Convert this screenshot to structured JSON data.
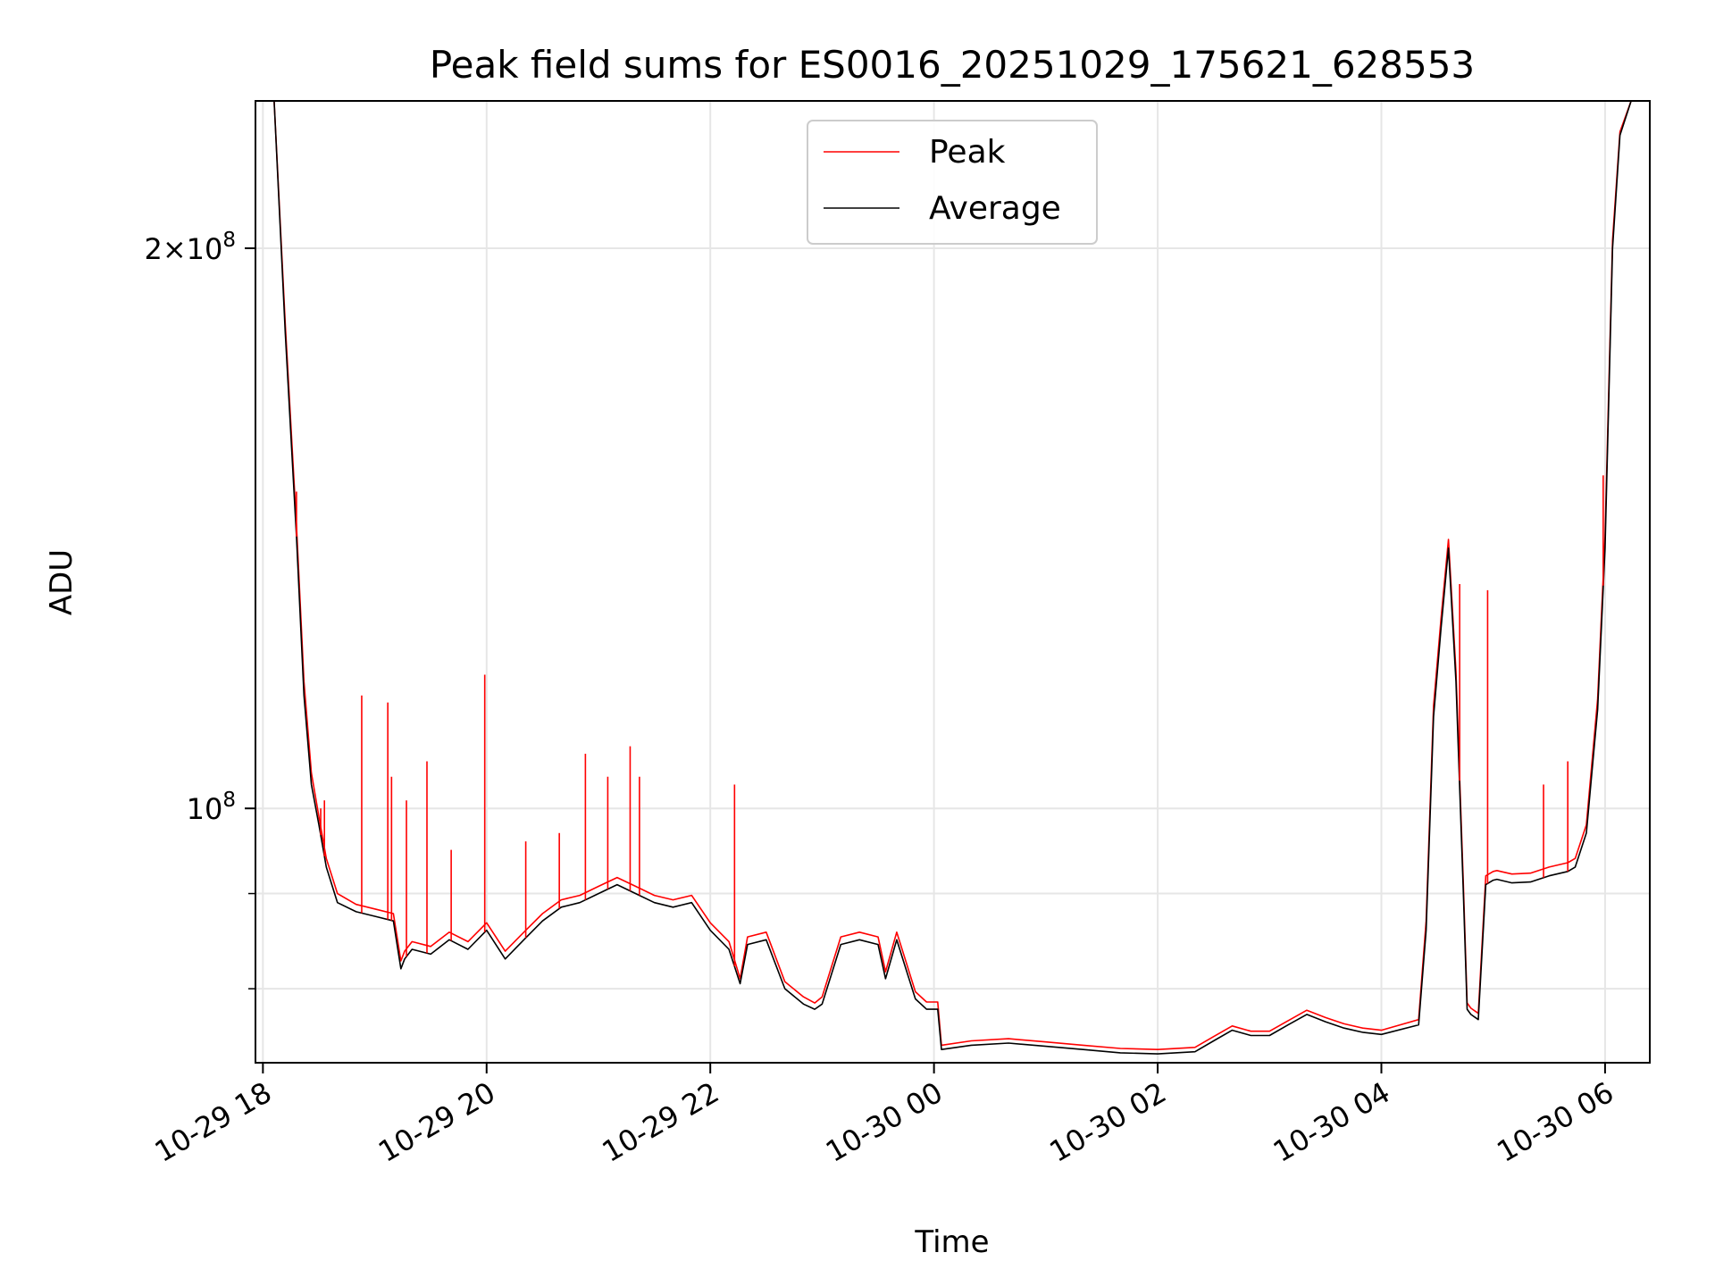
{
  "chart_data": {
    "type": "line",
    "title": "Peak field sums for ES0016_20251029_175621_628553",
    "xlabel": "Time",
    "ylabel": "ADU",
    "yscale": "log",
    "grid": true,
    "legend_position": "top-center",
    "xlim": [
      "2025-10-29 17:56",
      "2025-10-30 06:24"
    ],
    "ylim": [
      73000000,
      240000000
    ],
    "x_ticks": [
      "10-29 18",
      "10-29 20",
      "10-29 22",
      "10-30 00",
      "10-30 02",
      "10-30 04",
      "10-30 06"
    ],
    "x_tick_values": [
      "2025-10-29 18:00",
      "2025-10-29 20:00",
      "2025-10-29 22:00",
      "2025-10-30 00:00",
      "2025-10-30 02:00",
      "2025-10-30 04:00",
      "2025-10-30 06:00"
    ],
    "y_major_ticks": [
      {
        "value": 100000000,
        "base": "10",
        "exp": "8"
      },
      {
        "value": 200000000,
        "mant": "2",
        "base": "10",
        "exp": "8"
      }
    ],
    "y_minor_ticks": [
      80000000,
      90000000
    ],
    "x": [
      "2025-10-29 17:56",
      "2025-10-29 18:06",
      "2025-10-29 18:12",
      "2025-10-29 18:18",
      "2025-10-29 18:22",
      "2025-10-29 18:26",
      "2025-10-29 18:30",
      "2025-10-29 18:34",
      "2025-10-29 18:40",
      "2025-10-29 18:50",
      "2025-10-29 19:00",
      "2025-10-29 19:10",
      "2025-10-29 19:14",
      "2025-10-29 19:16",
      "2025-10-29 19:20",
      "2025-10-29 19:30",
      "2025-10-29 19:40",
      "2025-10-29 19:50",
      "2025-10-29 20:00",
      "2025-10-29 20:10",
      "2025-10-29 20:20",
      "2025-10-29 20:30",
      "2025-10-29 20:40",
      "2025-10-29 20:50",
      "2025-10-29 21:00",
      "2025-10-29 21:10",
      "2025-10-29 21:20",
      "2025-10-29 21:30",
      "2025-10-29 21:40",
      "2025-10-29 21:50",
      "2025-10-29 22:00",
      "2025-10-29 22:10",
      "2025-10-29 22:16",
      "2025-10-29 22:20",
      "2025-10-29 22:30",
      "2025-10-29 22:40",
      "2025-10-29 22:50",
      "2025-10-29 22:56",
      "2025-10-29 23:00",
      "2025-10-29 23:10",
      "2025-10-29 23:20",
      "2025-10-29 23:30",
      "2025-10-29 23:34",
      "2025-10-29 23:40",
      "2025-10-29 23:50",
      "2025-10-29 23:56",
      "2025-10-30 00:02",
      "2025-10-30 00:04",
      "2025-10-30 00:20",
      "2025-10-30 00:40",
      "2025-10-30 01:00",
      "2025-10-30 01:20",
      "2025-10-30 01:40",
      "2025-10-30 02:00",
      "2025-10-30 02:20",
      "2025-10-30 02:30",
      "2025-10-30 02:40",
      "2025-10-30 02:50",
      "2025-10-30 03:00",
      "2025-10-30 03:10",
      "2025-10-30 03:20",
      "2025-10-30 03:30",
      "2025-10-30 03:40",
      "2025-10-30 03:50",
      "2025-10-30 04:00",
      "2025-10-30 04:20",
      "2025-10-30 04:24",
      "2025-10-30 04:28",
      "2025-10-30 04:32",
      "2025-10-30 04:36",
      "2025-10-30 04:40",
      "2025-10-30 04:44",
      "2025-10-30 04:46",
      "2025-10-30 04:48",
      "2025-10-30 04:52",
      "2025-10-30 04:56",
      "2025-10-30 05:00",
      "2025-10-30 05:02",
      "2025-10-30 05:04",
      "2025-10-30 05:10",
      "2025-10-30 05:20",
      "2025-10-30 05:30",
      "2025-10-30 05:40",
      "2025-10-30 05:44",
      "2025-10-30 05:50",
      "2025-10-30 05:56",
      "2025-10-30 06:00",
      "2025-10-30 06:04",
      "2025-10-30 06:08",
      "2025-10-30 06:14",
      "2025-10-30 06:24"
    ],
    "series": [
      {
        "name": "Average",
        "color": "#000000",
        "values": [
          240000000,
          240000000,
          180000000,
          140000000,
          115000000,
          103000000,
          98000000,
          93000000,
          89000000,
          88000000,
          87500000,
          87000000,
          82000000,
          83000000,
          84000000,
          83500000,
          85000000,
          84000000,
          86000000,
          83000000,
          85000000,
          87000000,
          88500000,
          89000000,
          90000000,
          91000000,
          90000000,
          89000000,
          88500000,
          89000000,
          86000000,
          84000000,
          80500000,
          84500000,
          85000000,
          80000000,
          78500000,
          78000000,
          78500000,
          84500000,
          85000000,
          84500000,
          81000000,
          85000000,
          79000000,
          78000000,
          78000000,
          74200000,
          74600000,
          74800000,
          74500000,
          74200000,
          73900000,
          73800000,
          74000000,
          75000000,
          76000000,
          75500000,
          75500000,
          76500000,
          77500000,
          76800000,
          76200000,
          75800000,
          75600000,
          76500000,
          86000000,
          112000000,
          125000000,
          138000000,
          117000000,
          90000000,
          78000000,
          77500000,
          77000000,
          91000000,
          91500000,
          91600000,
          91500000,
          91200000,
          91300000,
          92000000,
          92500000,
          93000000,
          97000000,
          113000000,
          138000000,
          200000000,
          230000000,
          240000000,
          240000000
        ]
      },
      {
        "name": "Peak",
        "color": "#ff0000",
        "values": [
          240000000,
          240000000,
          182000000,
          142000000,
          117000000,
          104500000,
          99000000,
          94000000,
          90000000,
          88800000,
          88300000,
          87800000,
          82800000,
          83800000,
          84800000,
          84300000,
          85800000,
          84800000,
          86800000,
          83800000,
          85800000,
          87800000,
          89300000,
          89800000,
          90800000,
          91800000,
          90800000,
          89800000,
          89300000,
          89800000,
          86800000,
          84800000,
          81000000,
          85300000,
          85800000,
          80700000,
          79200000,
          78600000,
          79200000,
          85300000,
          85800000,
          85300000,
          81700000,
          85800000,
          79700000,
          78700000,
          78700000,
          74600000,
          75000000,
          75200000,
          74900000,
          74600000,
          74300000,
          74200000,
          74400000,
          75400000,
          76400000,
          75900000,
          75900000,
          76900000,
          77900000,
          77200000,
          76600000,
          76200000,
          76000000,
          77000000,
          87000000,
          113500000,
          126500000,
          139500000,
          118500000,
          91000000,
          78600000,
          78100000,
          77600000,
          92000000,
          92500000,
          92600000,
          92500000,
          92200000,
          92300000,
          93000000,
          93500000,
          94000000,
          98000000,
          114500000,
          140000000,
          202000000,
          231000000,
          240000000,
          240000000
        ]
      }
    ],
    "spikes": {
      "color": "#ff0000",
      "x": [
        "2025-10-29 18:18",
        "2025-10-29 18:31",
        "2025-10-29 18:33",
        "2025-10-29 18:53",
        "2025-10-29 19:07",
        "2025-10-29 19:09",
        "2025-10-29 19:17",
        "2025-10-29 19:28",
        "2025-10-29 19:41",
        "2025-10-29 19:59",
        "2025-10-29 20:21",
        "2025-10-29 20:39",
        "2025-10-29 20:53",
        "2025-10-29 21:05",
        "2025-10-29 21:17",
        "2025-10-29 21:22",
        "2025-10-29 22:13",
        "2025-10-30 04:42",
        "2025-10-30 04:57",
        "2025-10-30 05:27",
        "2025-10-30 05:40",
        "2025-10-30 05:59"
      ],
      "values": [
        148000000,
        100000000,
        101000000,
        115000000,
        114000000,
        104000000,
        101000000,
        106000000,
        95000000,
        118000000,
        96000000,
        97000000,
        107000000,
        104000000,
        108000000,
        104000000,
        103000000,
        132000000,
        131000000,
        103000000,
        106000000,
        151000000
      ]
    }
  },
  "legend": {
    "items": [
      {
        "label": "Peak",
        "color": "#ff0000"
      },
      {
        "label": "Average",
        "color": "#000000"
      }
    ]
  }
}
